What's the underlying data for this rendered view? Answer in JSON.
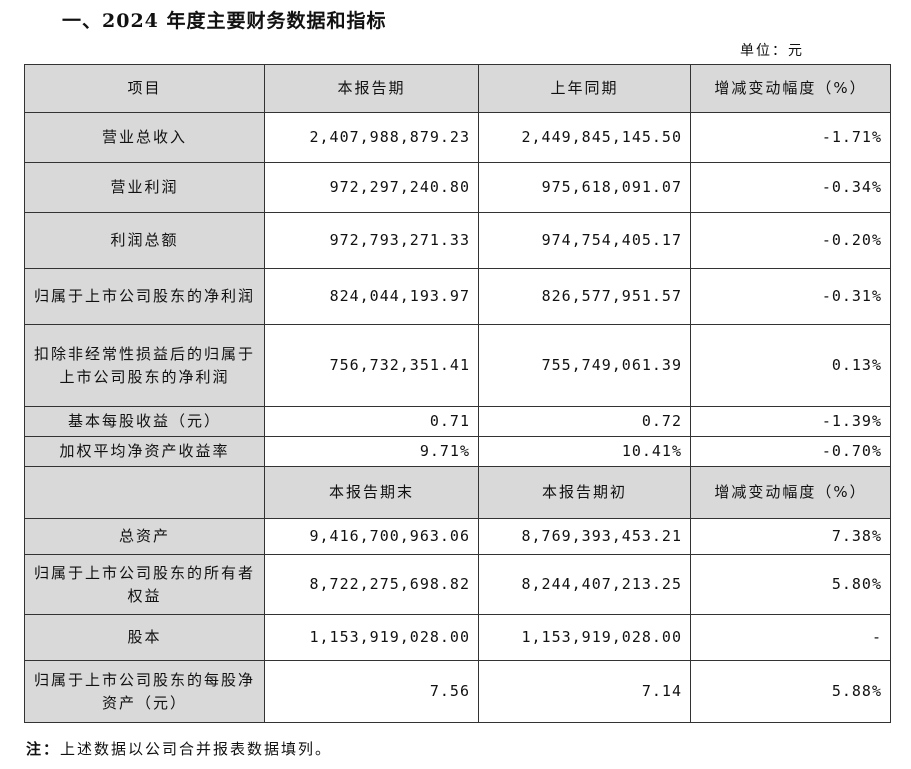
{
  "heading": "一、2024 年度主要财务数据和指标",
  "unit": "单位：元",
  "header1": [
    "项目",
    "本报告期",
    "上年同期",
    "增减变动幅度（%）"
  ],
  "rows1": [
    {
      "label": "营业总收入",
      "cur": "2,407,988,879.23",
      "prev": "2,449,845,145.50",
      "chg": "-1.71%"
    },
    {
      "label": "营业利润",
      "cur": "972,297,240.80",
      "prev": "975,618,091.07",
      "chg": "-0.34%"
    },
    {
      "label": "利润总额",
      "cur": "972,793,271.33",
      "prev": "974,754,405.17",
      "chg": "-0.20%"
    },
    {
      "label": "归属于上市公司股东的净利润",
      "cur": "824,044,193.97",
      "prev": "826,577,951.57",
      "chg": "-0.31%"
    },
    {
      "label": "扣除非经常性损益后的归属于上市公司股东的净利润",
      "cur": "756,732,351.41",
      "prev": "755,749,061.39",
      "chg": "0.13%"
    },
    {
      "label": "基本每股收益（元）",
      "cur": "0.71",
      "prev": "0.72",
      "chg": "-1.39%"
    },
    {
      "label": "加权平均净资产收益率",
      "cur": "9.71%",
      "prev": "10.41%",
      "chg": "-0.70%"
    }
  ],
  "header2": [
    "",
    "本报告期末",
    "本报告期初",
    "增减变动幅度（%）"
  ],
  "rows2": [
    {
      "label": "总资产",
      "cur": "9,416,700,963.06",
      "prev": "8,769,393,453.21",
      "chg": "7.38%"
    },
    {
      "label": "归属于上市公司股东的所有者权益",
      "cur": "8,722,275,698.82",
      "prev": "8,244,407,213.25",
      "chg": "5.80%"
    },
    {
      "label": "股本",
      "cur": "1,153,919,028.00",
      "prev": "1,153,919,028.00",
      "chg": "-"
    },
    {
      "label": "归属于上市公司股东的每股净资产（元）",
      "cur": "7.56",
      "prev": "7.14",
      "chg": "5.88%"
    }
  ],
  "note_prefix": "注：",
  "note_text": "上述数据以公司合并报表数据填列。"
}
